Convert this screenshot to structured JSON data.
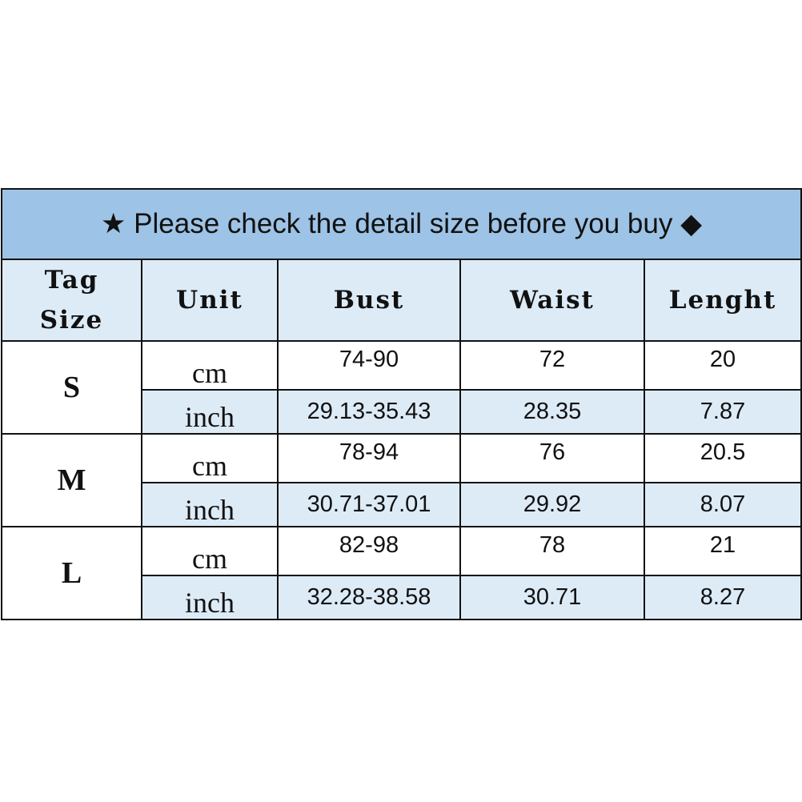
{
  "banner": {
    "star_icon": "★",
    "text": "Please check the detail size before you buy",
    "diamond_icon": "◆"
  },
  "headers": {
    "tag_size_line1": "Tag",
    "tag_size_line2": "Size",
    "unit": "Unit",
    "bust": "Bust",
    "waist": "Waist",
    "length": "Lenght"
  },
  "colors": {
    "banner_bg": "#9dc3e6",
    "header_bg": "#ddebf7",
    "inch_row_bg": "#ddebf7"
  },
  "rows": [
    {
      "size": "S",
      "cm": {
        "unit": "cm",
        "bust": "74-90",
        "waist": "72",
        "length": "20"
      },
      "inch": {
        "unit": "inch",
        "bust": "29.13-35.43",
        "waist": "28.35",
        "length": "7.87"
      }
    },
    {
      "size": "M",
      "cm": {
        "unit": "cm",
        "bust": "78-94",
        "waist": "76",
        "length": "20.5"
      },
      "inch": {
        "unit": "inch",
        "bust": "30.71-37.01",
        "waist": "29.92",
        "length": "8.07"
      }
    },
    {
      "size": "L",
      "cm": {
        "unit": "cm",
        "bust": "82-98",
        "waist": "78",
        "length": "21"
      },
      "inch": {
        "unit": "inch",
        "bust": "32.28-38.58",
        "waist": "30.71",
        "length": "8.27"
      }
    }
  ]
}
